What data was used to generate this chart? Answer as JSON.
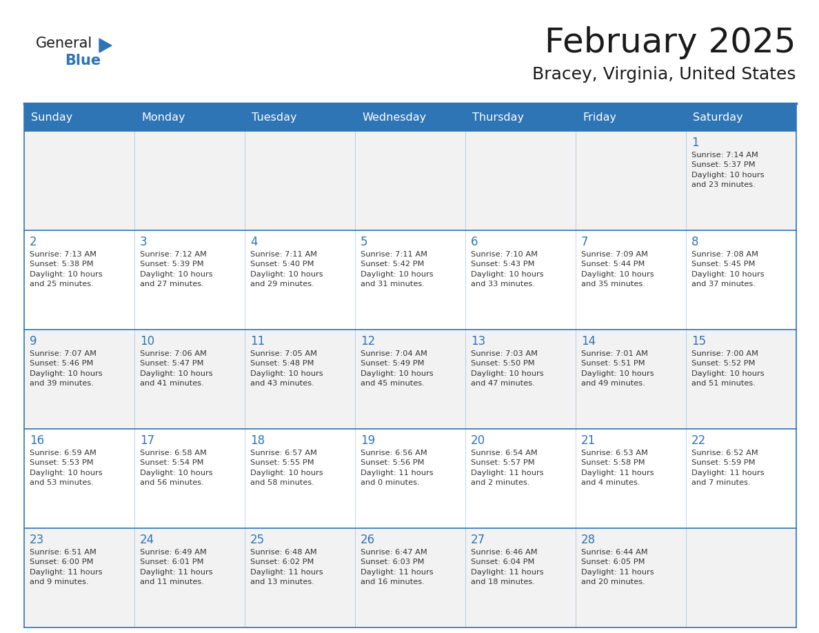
{
  "title": "February 2025",
  "subtitle": "Bracey, Virginia, United States",
  "header_bg": "#2E75B6",
  "header_text_color": "#FFFFFF",
  "cell_bg_light": "#F2F2F2",
  "cell_bg_white": "#FFFFFF",
  "border_color": "#2E75B6",
  "day_names": [
    "Sunday",
    "Monday",
    "Tuesday",
    "Wednesday",
    "Thursday",
    "Friday",
    "Saturday"
  ],
  "title_color": "#1a1a1a",
  "subtitle_color": "#1a1a1a",
  "day_num_color": "#2E75B6",
  "cell_text_color": "#333333",
  "logo_general_color": "#1a1a1a",
  "logo_blue_color": "#2E75B6",
  "weeks": [
    [
      {
        "day": "",
        "info": ""
      },
      {
        "day": "",
        "info": ""
      },
      {
        "day": "",
        "info": ""
      },
      {
        "day": "",
        "info": ""
      },
      {
        "day": "",
        "info": ""
      },
      {
        "day": "",
        "info": ""
      },
      {
        "day": "1",
        "info": "Sunrise: 7:14 AM\nSunset: 5:37 PM\nDaylight: 10 hours\nand 23 minutes."
      }
    ],
    [
      {
        "day": "2",
        "info": "Sunrise: 7:13 AM\nSunset: 5:38 PM\nDaylight: 10 hours\nand 25 minutes."
      },
      {
        "day": "3",
        "info": "Sunrise: 7:12 AM\nSunset: 5:39 PM\nDaylight: 10 hours\nand 27 minutes."
      },
      {
        "day": "4",
        "info": "Sunrise: 7:11 AM\nSunset: 5:40 PM\nDaylight: 10 hours\nand 29 minutes."
      },
      {
        "day": "5",
        "info": "Sunrise: 7:11 AM\nSunset: 5:42 PM\nDaylight: 10 hours\nand 31 minutes."
      },
      {
        "day": "6",
        "info": "Sunrise: 7:10 AM\nSunset: 5:43 PM\nDaylight: 10 hours\nand 33 minutes."
      },
      {
        "day": "7",
        "info": "Sunrise: 7:09 AM\nSunset: 5:44 PM\nDaylight: 10 hours\nand 35 minutes."
      },
      {
        "day": "8",
        "info": "Sunrise: 7:08 AM\nSunset: 5:45 PM\nDaylight: 10 hours\nand 37 minutes."
      }
    ],
    [
      {
        "day": "9",
        "info": "Sunrise: 7:07 AM\nSunset: 5:46 PM\nDaylight: 10 hours\nand 39 minutes."
      },
      {
        "day": "10",
        "info": "Sunrise: 7:06 AM\nSunset: 5:47 PM\nDaylight: 10 hours\nand 41 minutes."
      },
      {
        "day": "11",
        "info": "Sunrise: 7:05 AM\nSunset: 5:48 PM\nDaylight: 10 hours\nand 43 minutes."
      },
      {
        "day": "12",
        "info": "Sunrise: 7:04 AM\nSunset: 5:49 PM\nDaylight: 10 hours\nand 45 minutes."
      },
      {
        "day": "13",
        "info": "Sunrise: 7:03 AM\nSunset: 5:50 PM\nDaylight: 10 hours\nand 47 minutes."
      },
      {
        "day": "14",
        "info": "Sunrise: 7:01 AM\nSunset: 5:51 PM\nDaylight: 10 hours\nand 49 minutes."
      },
      {
        "day": "15",
        "info": "Sunrise: 7:00 AM\nSunset: 5:52 PM\nDaylight: 10 hours\nand 51 minutes."
      }
    ],
    [
      {
        "day": "16",
        "info": "Sunrise: 6:59 AM\nSunset: 5:53 PM\nDaylight: 10 hours\nand 53 minutes."
      },
      {
        "day": "17",
        "info": "Sunrise: 6:58 AM\nSunset: 5:54 PM\nDaylight: 10 hours\nand 56 minutes."
      },
      {
        "day": "18",
        "info": "Sunrise: 6:57 AM\nSunset: 5:55 PM\nDaylight: 10 hours\nand 58 minutes."
      },
      {
        "day": "19",
        "info": "Sunrise: 6:56 AM\nSunset: 5:56 PM\nDaylight: 11 hours\nand 0 minutes."
      },
      {
        "day": "20",
        "info": "Sunrise: 6:54 AM\nSunset: 5:57 PM\nDaylight: 11 hours\nand 2 minutes."
      },
      {
        "day": "21",
        "info": "Sunrise: 6:53 AM\nSunset: 5:58 PM\nDaylight: 11 hours\nand 4 minutes."
      },
      {
        "day": "22",
        "info": "Sunrise: 6:52 AM\nSunset: 5:59 PM\nDaylight: 11 hours\nand 7 minutes."
      }
    ],
    [
      {
        "day": "23",
        "info": "Sunrise: 6:51 AM\nSunset: 6:00 PM\nDaylight: 11 hours\nand 9 minutes."
      },
      {
        "day": "24",
        "info": "Sunrise: 6:49 AM\nSunset: 6:01 PM\nDaylight: 11 hours\nand 11 minutes."
      },
      {
        "day": "25",
        "info": "Sunrise: 6:48 AM\nSunset: 6:02 PM\nDaylight: 11 hours\nand 13 minutes."
      },
      {
        "day": "26",
        "info": "Sunrise: 6:47 AM\nSunset: 6:03 PM\nDaylight: 11 hours\nand 16 minutes."
      },
      {
        "day": "27",
        "info": "Sunrise: 6:46 AM\nSunset: 6:04 PM\nDaylight: 11 hours\nand 18 minutes."
      },
      {
        "day": "28",
        "info": "Sunrise: 6:44 AM\nSunset: 6:05 PM\nDaylight: 11 hours\nand 20 minutes."
      },
      {
        "day": "",
        "info": ""
      }
    ]
  ]
}
